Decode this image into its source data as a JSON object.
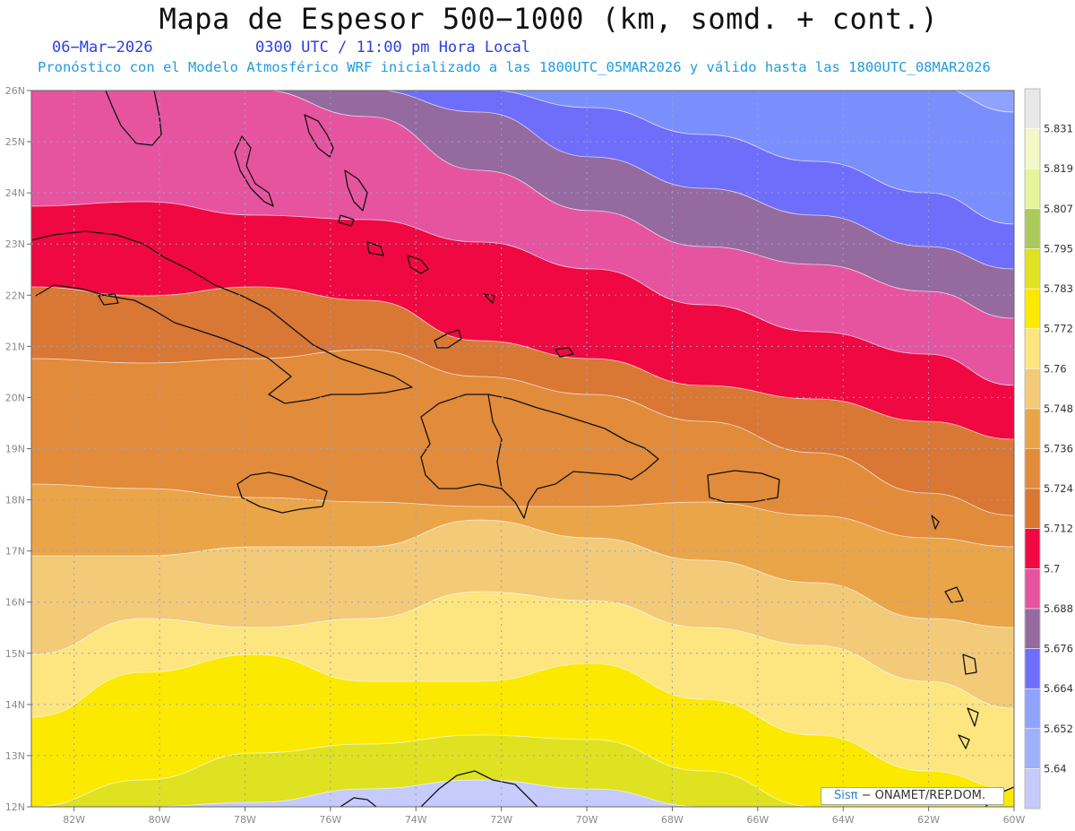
{
  "header": {
    "title": "Mapa de Espesor 500−1000 (km, somd. + cont.)",
    "date": "06−Mar−2026",
    "utc": "0300 UTC / 11:00 pm Hora Local",
    "forecast": "Pronóstico con el Modelo Atmosférico WRF inicializado a las 1800UTC_05MAR2026 y válido hasta las  1800UTC_08MAR2026"
  },
  "map": {
    "lat_labels": [
      "26N",
      "25N",
      "24N",
      "23N",
      "22N",
      "21N",
      "20N",
      "19N",
      "18N",
      "17N",
      "16N",
      "15N",
      "14N",
      "13N",
      "12N"
    ],
    "lon_labels": [
      "82W",
      "80W",
      "78W",
      "76W",
      "74W",
      "72W",
      "70W",
      "68W",
      "66W",
      "64W",
      "62W",
      "60W"
    ],
    "lat_range": [
      12,
      26
    ],
    "lon_range": [
      -83,
      -60
    ],
    "band_colors": [
      "#c6cbfc",
      "#8fa3fc",
      "#7b8ffc",
      "#6f6efa",
      "#956a9e",
      "#e654a0",
      "#ef0841",
      "#d97734",
      "#e28b3a",
      "#eaa548",
      "#f2ca78",
      "#fde57f",
      "#fbea00",
      "#dfe220"
    ]
  },
  "colorbar": {
    "labels": [
      "5.831",
      "5.819",
      "5.807",
      "5.795",
      "5.783",
      "5.772",
      "5.76",
      "5.748",
      "5.736",
      "5.724",
      "5.712",
      "5.7",
      "5.688",
      "5.676",
      "5.664",
      "5.652",
      "5.64"
    ],
    "colors": [
      "#c6cbfc",
      "#9eb1fc",
      "#8fa3fc",
      "#6f6efa",
      "#956a9e",
      "#e654a0",
      "#ef0841",
      "#d97734",
      "#e28b3a",
      "#eaa548",
      "#f2ca78",
      "#fde57f",
      "#fbea00",
      "#dfe220",
      "#acc95c",
      "#e6f59a",
      "#f2f8c6",
      "#e8e8e8"
    ]
  },
  "credit": {
    "logo": "Sisπ",
    "text": "− ONAMET/REP.DOM."
  }
}
